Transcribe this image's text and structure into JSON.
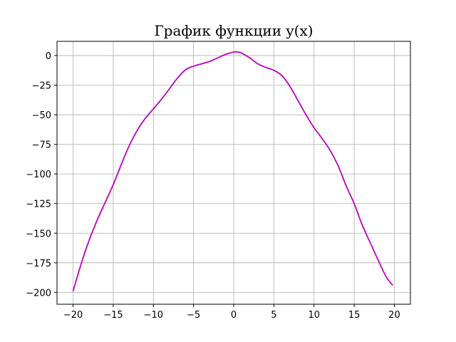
{
  "chart_data": {
    "type": "line",
    "title": "График функции y(x)",
    "xlabel": "",
    "ylabel": "",
    "xlim": [
      -22,
      22
    ],
    "ylim": [
      -210,
      12
    ],
    "x_ticks": [
      -20,
      -15,
      -10,
      -5,
      0,
      5,
      10,
      15,
      20
    ],
    "x_tick_labels": [
      "−20",
      "−15",
      "−10",
      "−5",
      "0",
      "5",
      "10",
      "15",
      "20"
    ],
    "y_ticks": [
      0,
      -25,
      -50,
      -75,
      -100,
      -125,
      -150,
      -175,
      -200
    ],
    "y_tick_labels": [
      "0",
      "−25",
      "−50",
      "−75",
      "−100",
      "−125",
      "−150",
      "−175",
      "−200"
    ],
    "grid": true,
    "line_color": "#bf00bf",
    "series": [
      {
        "x": [
          -20,
          -19,
          -18,
          -17,
          -16,
          -15,
          -14,
          -13,
          -12,
          -11,
          -10,
          -9,
          -8,
          -7,
          -6,
          -5,
          -4,
          -3,
          -2,
          -1,
          0,
          0.5,
          1,
          2,
          3,
          4,
          5,
          6,
          7,
          8,
          9,
          10,
          11,
          12,
          13,
          14,
          15,
          16,
          17,
          18,
          19,
          19.8
        ],
        "y": [
          -199,
          -176,
          -156,
          -139,
          -124,
          -109,
          -92,
          -76,
          -63,
          -53,
          -45,
          -37,
          -28,
          -19,
          -12,
          -9,
          -7,
          -5,
          -2,
          1,
          3,
          3,
          2,
          -2,
          -7,
          -10,
          -12.5,
          -17,
          -26,
          -38,
          -50,
          -61,
          -70,
          -80,
          -93,
          -110,
          -125,
          -143,
          -158,
          -173,
          -187,
          -194
        ]
      }
    ]
  }
}
